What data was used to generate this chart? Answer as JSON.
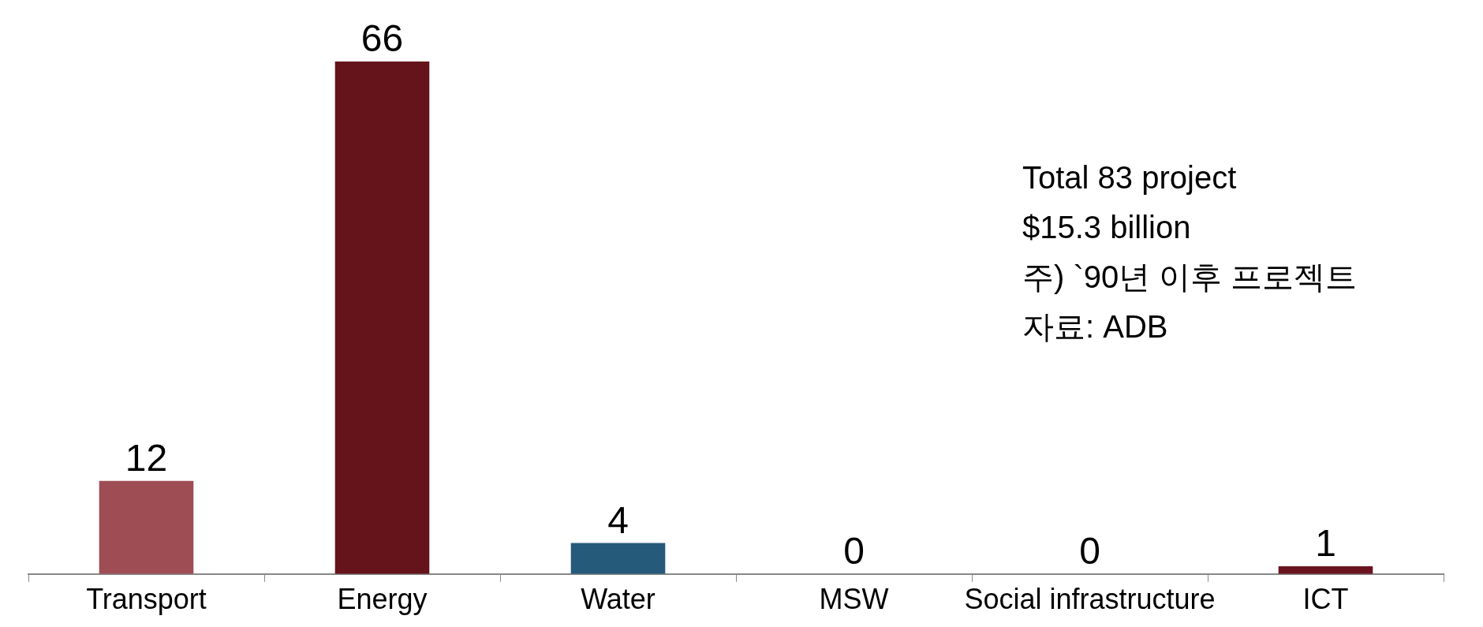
{
  "chart_data": {
    "type": "bar",
    "categories": [
      "Transport",
      "Energy",
      "Water",
      "MSW",
      "Social infrastructure",
      "ICT"
    ],
    "values": [
      12,
      66,
      4,
      0,
      0,
      1
    ],
    "colors": [
      "#9e4d55",
      "#65141c",
      "#265a7a",
      "#65141c",
      "#65141c",
      "#6a1420"
    ],
    "data_labels": true,
    "grid": false,
    "legend": false,
    "annotations": [
      "Total 83 project",
      "$15.3 billion",
      "주) `90년 이후 프로젝트",
      "자료: ADB"
    ]
  }
}
